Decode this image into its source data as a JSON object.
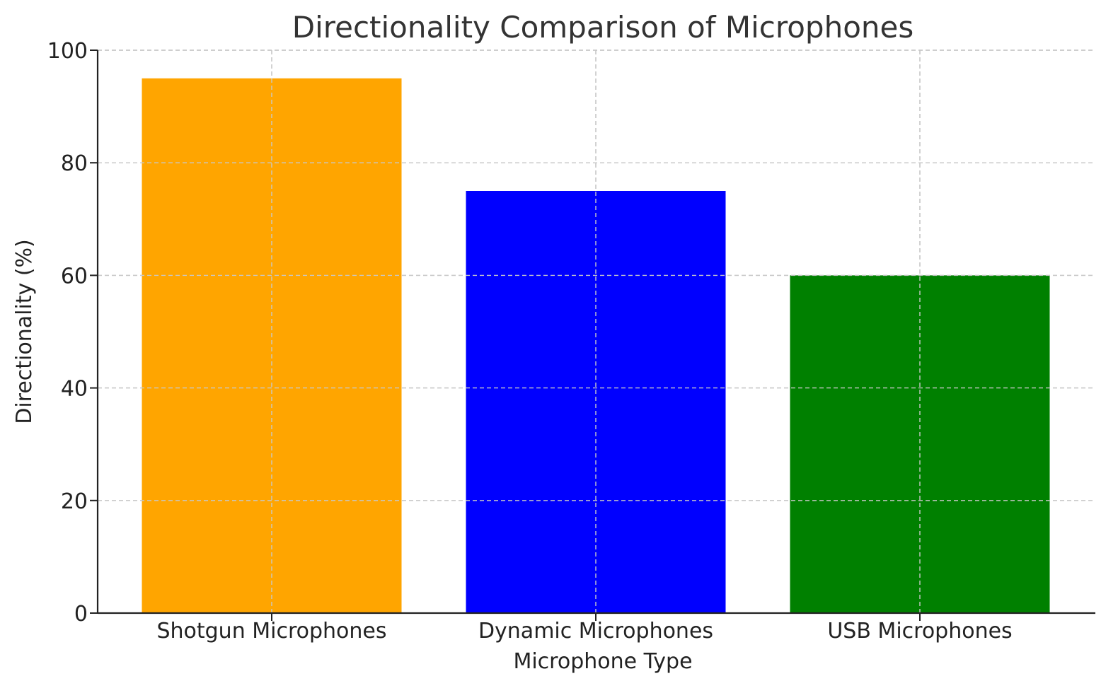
{
  "chart_data": {
    "type": "bar",
    "title": "Directionality Comparison of Microphones",
    "xlabel": "Microphone Type",
    "ylabel": "Directionality (%)",
    "categories": [
      "Shotgun Microphones",
      "Dynamic Microphones",
      "USB Microphones"
    ],
    "values": [
      95,
      75,
      60
    ],
    "colors": [
      "#FFA500",
      "#0000FF",
      "#008000"
    ],
    "ylim": [
      0,
      100
    ],
    "yticks": [
      0,
      20,
      40,
      60,
      80,
      100
    ],
    "grid": true,
    "legend": "none"
  }
}
